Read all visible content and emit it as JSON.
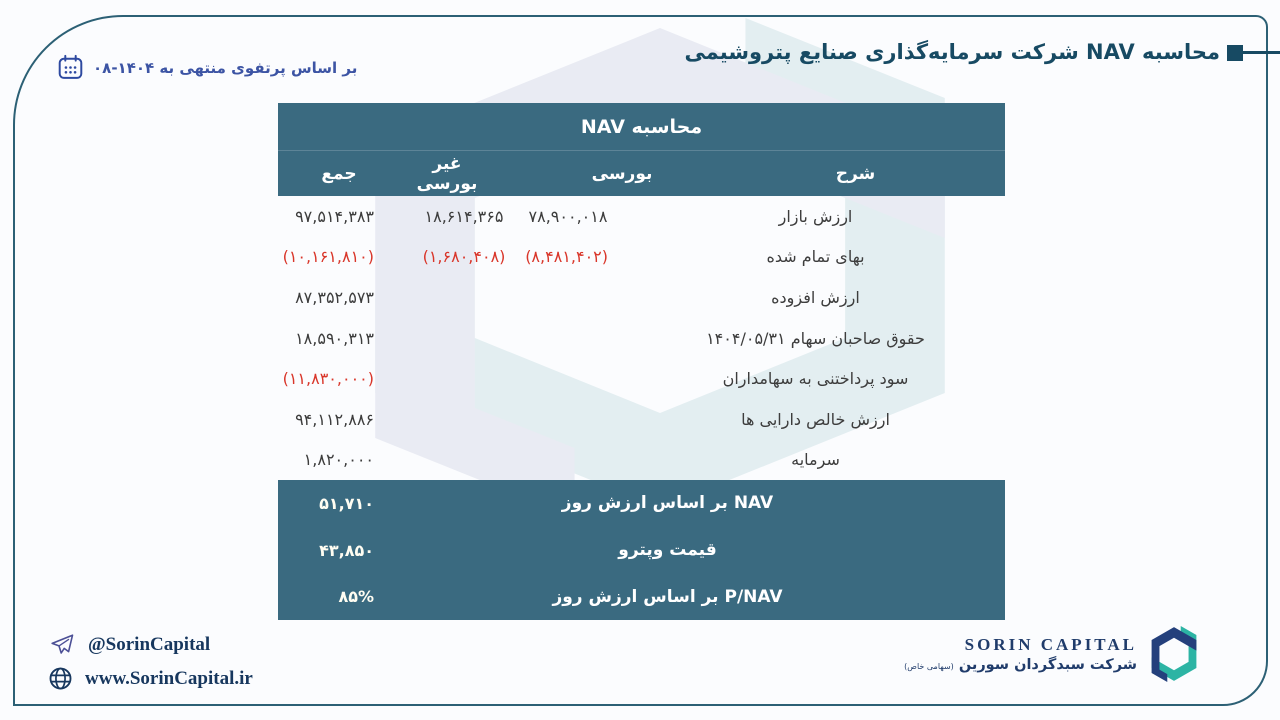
{
  "header": {
    "title": "محاسبه NAV شرکت سرمایه‌گذاری صنایع پتروشیمی",
    "subtitle": "بر اساس پرتفوی منتهی به ۱۴۰۴-۰۸"
  },
  "table": {
    "title": "محاسبه NAV",
    "columns": [
      "شرح",
      "بورسی",
      "غیر بورسی",
      "جمع"
    ],
    "rows": [
      {
        "label": "ارزش بازار",
        "listed": "۷۸,۹۰۰,۰۱۸",
        "unlisted": "۱۸,۶۱۴,۳۶۵",
        "total": "۹۷,۵۱۴,۳۸۳",
        "red": false
      },
      {
        "label": "بهای تمام شده",
        "listed": "(۸,۴۸۱,۴۰۲)",
        "unlisted": "(۱,۶۸۰,۴۰۸)",
        "total": "(۱۰,۱۶۱,۸۱۰)",
        "red": true
      },
      {
        "label": "ارزش افزوده",
        "listed": "",
        "unlisted": "",
        "total": "۸۷,۳۵۲,۵۷۳",
        "red": false
      },
      {
        "label": "حقوق صاحبان سهام ۱۴۰۴/۰۵/۳۱",
        "listed": "",
        "unlisted": "",
        "total": "۱۸,۵۹۰,۳۱۳",
        "red": false
      },
      {
        "label": "سود پرداختنی به سهامداران",
        "listed": "",
        "unlisted": "",
        "total": "(۱۱,۸۳۰,۰۰۰)",
        "red": true
      },
      {
        "label": "ارزش خالص دارایی ها",
        "listed": "",
        "unlisted": "",
        "total": "۹۴,۱۱۲,۸۸۶",
        "red": false
      },
      {
        "label": "سرمایه",
        "listed": "",
        "unlisted": "",
        "total": "۱,۸۲۰,۰۰۰",
        "red": false
      }
    ],
    "summary": [
      {
        "label": "NAV بر اساس ارزش روز",
        "value": "۵۱,۷۱۰"
      },
      {
        "label": "قیمت وپترو",
        "value": "۴۳,۸۵۰"
      },
      {
        "label": "P/NAV بر اساس ارزش روز",
        "value": "۸۵%"
      }
    ]
  },
  "footer": {
    "telegram_handle": "@SorinCapital",
    "website": "www.SorinCapital.ir",
    "brand_name": "SORIN CAPITAL",
    "brand_fa": "شرکت سبدگردان سورین",
    "brand_fa_note": "(سهامی خاص)"
  },
  "colors": {
    "teal_header": "#3a6a80",
    "negative_red": "#d9362a",
    "title_navy": "#174a63",
    "subtitle_blue": "#3c54a4",
    "frame_border": "#2c6075",
    "footer_navy": "#17375e",
    "logo_navy": "#24407c",
    "logo_teal": "#2cb4a4",
    "watermark_gray": "#e9ebf3",
    "watermark_teal": "#e3eef1"
  }
}
